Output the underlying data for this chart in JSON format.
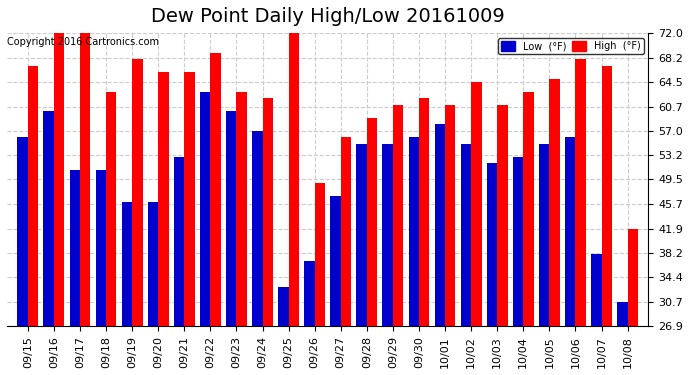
{
  "title": "Dew Point Daily High/Low 20161009",
  "copyright": "Copyright 2016 Cartronics.com",
  "categories": [
    "09/15",
    "09/16",
    "09/17",
    "09/18",
    "09/19",
    "09/20",
    "09/21",
    "09/22",
    "09/23",
    "09/24",
    "09/25",
    "09/26",
    "09/27",
    "09/28",
    "09/29",
    "09/30",
    "10/01",
    "10/02",
    "10/03",
    "10/04",
    "10/05",
    "10/06",
    "10/07",
    "10/08"
  ],
  "low_values": [
    56.0,
    60.0,
    51.0,
    51.0,
    46.0,
    46.0,
    53.0,
    63.0,
    60.0,
    57.0,
    33.0,
    37.0,
    47.0,
    55.0,
    55.0,
    56.0,
    58.0,
    55.0,
    52.0,
    53.0,
    55.0,
    56.0,
    38.0,
    30.7
  ],
  "high_values": [
    67.0,
    73.0,
    72.0,
    63.0,
    68.0,
    66.0,
    66.0,
    69.0,
    63.0,
    62.0,
    73.0,
    49.0,
    56.0,
    59.0,
    61.0,
    62.0,
    61.0,
    64.5,
    61.0,
    63.0,
    65.0,
    68.0,
    67.0,
    41.9
  ],
  "low_color": "#0000cc",
  "high_color": "#ff0000",
  "bg_color": "#ffffff",
  "plot_bg_color": "#ffffff",
  "ylim_min": 26.9,
  "ylim_max": 72.0,
  "yticks": [
    26.9,
    30.7,
    34.4,
    38.2,
    41.9,
    45.7,
    49.5,
    53.2,
    57.0,
    60.7,
    64.5,
    68.2,
    72.0
  ],
  "grid_color": "#cccccc",
  "title_fontsize": 14,
  "tick_fontsize": 8,
  "legend_low_label": "Low  (°F)",
  "legend_high_label": "High  (°F)"
}
